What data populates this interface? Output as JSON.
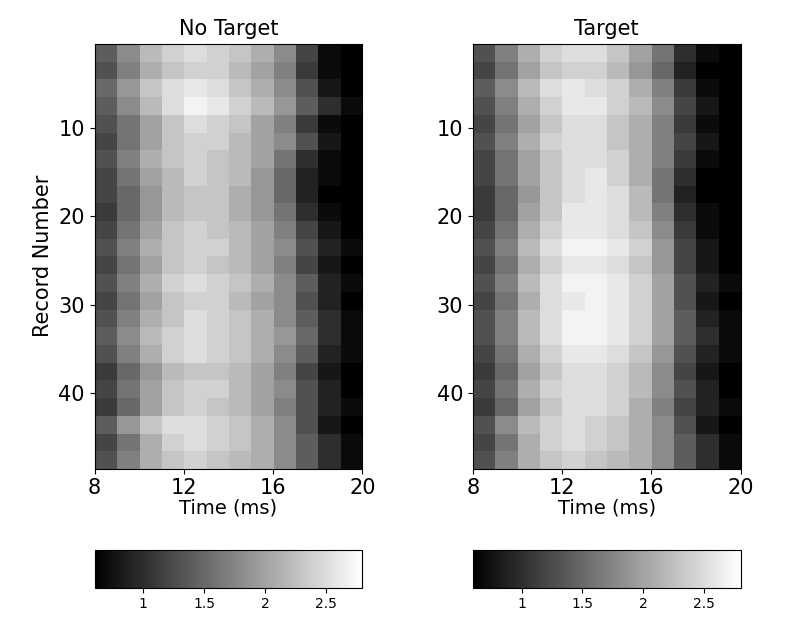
{
  "chart_data": [
    {
      "type": "heatmap",
      "title": "No Target",
      "x_label": "Time (ms)",
      "y_label": "Record Number",
      "xlim": [
        8,
        20
      ],
      "xticks": [
        8,
        12,
        16,
        20
      ],
      "ylim": [
        48.5,
        0.5
      ],
      "yticks": [
        10,
        20,
        30,
        40
      ],
      "color": "gray",
      "colorbar_range": [
        0.6,
        2.8
      ],
      "colorbar_ticks": [
        1,
        1.5,
        2,
        2.5
      ],
      "cells": [
        [
          1.4,
          1.8,
          2.2,
          2.4,
          2.5,
          2.4,
          2.3,
          2.1,
          1.8,
          1.2,
          0.7,
          0.6
        ],
        [
          1.3,
          1.7,
          2.1,
          2.3,
          2.4,
          2.4,
          2.2,
          2.0,
          1.7,
          1.1,
          0.7,
          0.6
        ],
        [
          1.5,
          1.9,
          2.3,
          2.5,
          2.6,
          2.5,
          2.3,
          2.1,
          1.8,
          1.3,
          0.8,
          0.6
        ],
        [
          1.4,
          1.8,
          2.2,
          2.5,
          2.7,
          2.6,
          2.4,
          2.2,
          1.9,
          1.4,
          1.0,
          0.7
        ],
        [
          1.3,
          1.6,
          2.0,
          2.3,
          2.5,
          2.4,
          2.3,
          2.0,
          1.7,
          1.1,
          0.7,
          0.6
        ],
        [
          1.2,
          1.6,
          2.0,
          2.3,
          2.4,
          2.4,
          2.2,
          2.0,
          1.8,
          1.3,
          0.8,
          0.6
        ],
        [
          1.3,
          1.7,
          2.1,
          2.3,
          2.4,
          2.3,
          2.2,
          2.0,
          1.6,
          1.0,
          0.7,
          0.6
        ],
        [
          1.2,
          1.6,
          2.0,
          2.2,
          2.4,
          2.3,
          2.2,
          1.9,
          1.5,
          0.9,
          0.7,
          0.6
        ],
        [
          1.2,
          1.5,
          1.9,
          2.2,
          2.3,
          2.3,
          2.1,
          1.9,
          1.5,
          0.9,
          0.6,
          0.6
        ],
        [
          1.1,
          1.5,
          1.9,
          2.2,
          2.3,
          2.3,
          2.1,
          1.9,
          1.6,
          1.0,
          0.7,
          0.6
        ],
        [
          1.2,
          1.6,
          2.0,
          2.3,
          2.4,
          2.3,
          2.2,
          2.0,
          1.7,
          1.2,
          0.8,
          0.6
        ],
        [
          1.3,
          1.7,
          2.1,
          2.3,
          2.4,
          2.4,
          2.2,
          2.0,
          1.8,
          1.3,
          0.9,
          0.7
        ],
        [
          1.2,
          1.6,
          2.0,
          2.3,
          2.4,
          2.3,
          2.2,
          2.0,
          1.7,
          1.2,
          0.8,
          0.6
        ],
        [
          1.3,
          1.7,
          2.1,
          2.4,
          2.5,
          2.4,
          2.3,
          2.1,
          1.8,
          1.4,
          0.9,
          0.7
        ],
        [
          1.2,
          1.6,
          2.0,
          2.3,
          2.4,
          2.4,
          2.2,
          2.0,
          1.8,
          1.3,
          0.9,
          0.6
        ],
        [
          1.3,
          1.7,
          2.1,
          2.3,
          2.5,
          2.4,
          2.3,
          2.1,
          1.8,
          1.4,
          1.0,
          0.7
        ],
        [
          1.4,
          1.8,
          2.2,
          2.4,
          2.5,
          2.4,
          2.3,
          2.1,
          1.9,
          1.5,
          1.0,
          0.7
        ],
        [
          1.3,
          1.7,
          2.1,
          2.4,
          2.5,
          2.4,
          2.3,
          2.1,
          1.8,
          1.4,
          0.9,
          0.7
        ],
        [
          1.1,
          1.5,
          1.9,
          2.2,
          2.3,
          2.3,
          2.2,
          2.0,
          1.7,
          1.2,
          0.8,
          0.6
        ],
        [
          1.2,
          1.6,
          2.0,
          2.3,
          2.4,
          2.4,
          2.2,
          2.0,
          1.8,
          1.3,
          0.9,
          0.6
        ],
        [
          1.1,
          1.5,
          2.0,
          2.3,
          2.4,
          2.3,
          2.2,
          2.0,
          1.7,
          1.3,
          0.9,
          0.7
        ],
        [
          1.4,
          1.9,
          2.3,
          2.5,
          2.5,
          2.4,
          2.3,
          2.1,
          1.8,
          1.3,
          0.8,
          0.6
        ],
        [
          1.2,
          1.6,
          2.1,
          2.4,
          2.5,
          2.4,
          2.3,
          2.1,
          1.8,
          1.4,
          1.0,
          0.7
        ],
        [
          1.3,
          1.7,
          2.1,
          2.3,
          2.4,
          2.3,
          2.2,
          2.1,
          1.8,
          1.4,
          1.0,
          0.7
        ]
      ]
    },
    {
      "type": "heatmap",
      "title": "Target",
      "x_label": "Time (ms)",
      "xlim": [
        8,
        20
      ],
      "xticks": [
        8,
        12,
        16,
        20
      ],
      "ylim": [
        48.5,
        0.5
      ],
      "yticks": [
        10,
        20,
        30,
        40
      ],
      "color": "gray",
      "colorbar_range": [
        0.6,
        2.8
      ],
      "colorbar_ticks": [
        1,
        1.5,
        2,
        2.5
      ],
      "cells": [
        [
          1.3,
          1.7,
          2.1,
          2.4,
          2.5,
          2.5,
          2.3,
          2.0,
          1.6,
          1.0,
          0.7,
          0.6
        ],
        [
          1.2,
          1.6,
          2.0,
          2.3,
          2.4,
          2.4,
          2.2,
          1.9,
          1.5,
          0.9,
          0.6,
          0.6
        ],
        [
          1.4,
          1.8,
          2.2,
          2.5,
          2.6,
          2.5,
          2.4,
          2.1,
          1.7,
          1.1,
          0.7,
          0.6
        ],
        [
          1.3,
          1.7,
          2.1,
          2.4,
          2.6,
          2.6,
          2.4,
          2.2,
          1.8,
          1.2,
          0.8,
          0.6
        ],
        [
          1.2,
          1.6,
          2.0,
          2.3,
          2.5,
          2.5,
          2.3,
          2.1,
          1.7,
          1.1,
          0.7,
          0.6
        ],
        [
          1.3,
          1.7,
          2.1,
          2.4,
          2.5,
          2.5,
          2.3,
          2.1,
          1.7,
          1.2,
          0.8,
          0.6
        ],
        [
          1.2,
          1.6,
          2.0,
          2.3,
          2.5,
          2.5,
          2.4,
          2.1,
          1.7,
          1.1,
          0.7,
          0.6
        ],
        [
          1.2,
          1.6,
          2.0,
          2.3,
          2.5,
          2.6,
          2.4,
          2.1,
          1.6,
          1.0,
          0.6,
          0.6
        ],
        [
          1.1,
          1.5,
          1.9,
          2.3,
          2.5,
          2.6,
          2.5,
          2.2,
          1.6,
          0.9,
          0.6,
          0.6
        ],
        [
          1.1,
          1.5,
          2.0,
          2.3,
          2.6,
          2.6,
          2.5,
          2.2,
          1.7,
          1.0,
          0.7,
          0.6
        ],
        [
          1.2,
          1.6,
          2.1,
          2.4,
          2.6,
          2.6,
          2.5,
          2.3,
          1.8,
          1.1,
          0.7,
          0.6
        ],
        [
          1.3,
          1.7,
          2.2,
          2.5,
          2.7,
          2.7,
          2.6,
          2.4,
          1.9,
          1.2,
          0.8,
          0.6
        ],
        [
          1.2,
          1.6,
          2.1,
          2.4,
          2.6,
          2.6,
          2.5,
          2.3,
          1.9,
          1.2,
          0.8,
          0.6
        ],
        [
          1.3,
          1.7,
          2.2,
          2.5,
          2.7,
          2.7,
          2.6,
          2.4,
          2.0,
          1.3,
          0.9,
          0.7
        ],
        [
          1.2,
          1.6,
          2.1,
          2.5,
          2.6,
          2.7,
          2.6,
          2.4,
          2.0,
          1.3,
          0.8,
          0.6
        ],
        [
          1.3,
          1.7,
          2.2,
          2.5,
          2.7,
          2.7,
          2.6,
          2.4,
          2.0,
          1.4,
          0.9,
          0.7
        ],
        [
          1.3,
          1.7,
          2.2,
          2.5,
          2.7,
          2.7,
          2.6,
          2.4,
          2.0,
          1.4,
          1.0,
          0.7
        ],
        [
          1.2,
          1.6,
          2.1,
          2.4,
          2.6,
          2.6,
          2.5,
          2.3,
          1.9,
          1.3,
          0.9,
          0.7
        ],
        [
          1.1,
          1.5,
          2.0,
          2.3,
          2.5,
          2.5,
          2.4,
          2.2,
          1.8,
          1.2,
          0.8,
          0.6
        ],
        [
          1.2,
          1.6,
          2.1,
          2.4,
          2.5,
          2.5,
          2.4,
          2.2,
          1.8,
          1.3,
          0.9,
          0.6
        ],
        [
          1.1,
          1.5,
          2.0,
          2.3,
          2.5,
          2.5,
          2.4,
          2.1,
          1.7,
          1.2,
          0.9,
          0.7
        ],
        [
          1.3,
          1.8,
          2.2,
          2.4,
          2.5,
          2.4,
          2.3,
          2.1,
          1.8,
          1.3,
          0.8,
          0.6
        ],
        [
          1.2,
          1.6,
          2.1,
          2.4,
          2.5,
          2.4,
          2.3,
          2.1,
          1.8,
          1.4,
          1.0,
          0.7
        ],
        [
          1.3,
          1.7,
          2.1,
          2.3,
          2.4,
          2.3,
          2.2,
          2.1,
          1.8,
          1.4,
          1.0,
          0.7
        ]
      ]
    }
  ]
}
